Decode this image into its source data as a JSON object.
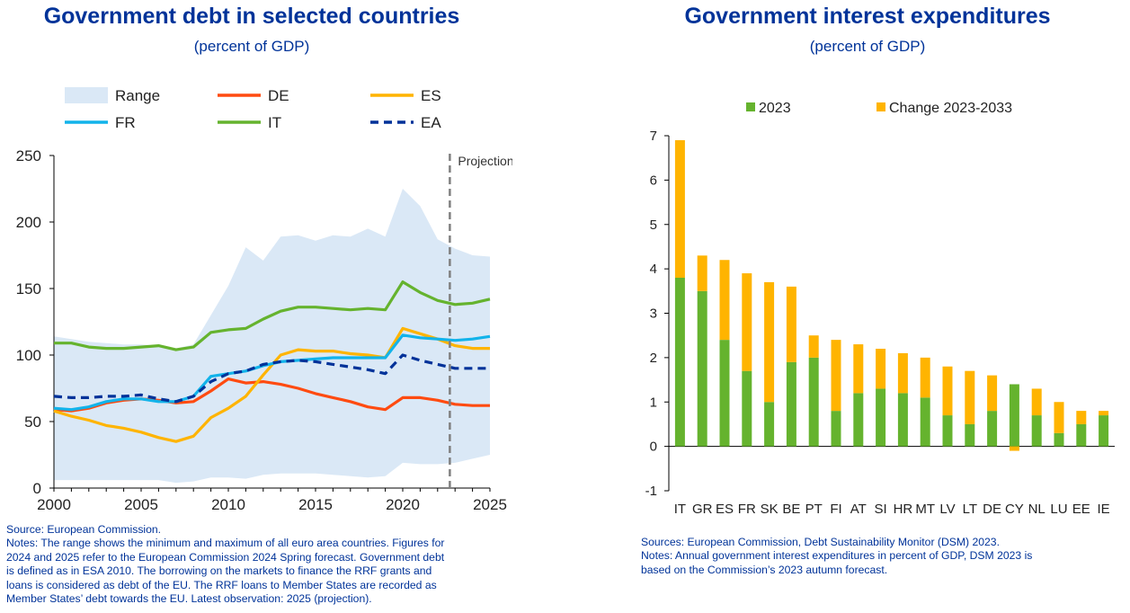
{
  "left_panel": {
    "title": "Government debt in selected countries",
    "subtitle": "(percent of GDP)",
    "projection_label": "Projection",
    "notes": [
      "Source: European Commission.",
      "Notes: The range shows the minimum and maximum of all euro area countries. Figures for",
      "2024 and 2025 refer to the European Commission 2024 Spring forecast. Government debt",
      "is defined as in ESA 2010. The borrowing on the markets to finance the RRF grants and",
      "loans is considered as debt of the EU. The RRF loans to Member States are recorded as",
      "Member States’ debt towards the EU. Latest observation: 2025 (projection)."
    ]
  },
  "right_panel": {
    "title": "Government interest expenditures",
    "subtitle": "(percent of GDP)",
    "notes": [
      "Sources: European Commission, Debt Sustainability Monitor (DSM) 2023.",
      "Notes: Annual government interest expenditures in percent of GDP, DSM 2023 is",
      "based on the Commission’s 2023 autumn forecast."
    ]
  },
  "chart_data": [
    {
      "type": "line",
      "title": "Government debt in selected countries",
      "subtitle": "(percent of GDP)",
      "xlim": [
        2000,
        2025
      ],
      "ylim": [
        0,
        250
      ],
      "x_ticks": [
        2000,
        2005,
        2010,
        2015,
        2020,
        2025
      ],
      "y_ticks": [
        0,
        50,
        100,
        150,
        200,
        250
      ],
      "grid": false,
      "projection_start": 2022.7,
      "x": [
        2000,
        2001,
        2002,
        2003,
        2004,
        2005,
        2006,
        2007,
        2008,
        2009,
        2010,
        2011,
        2012,
        2013,
        2014,
        2015,
        2016,
        2017,
        2018,
        2019,
        2020,
        2021,
        2022,
        2023,
        2024,
        2025
      ],
      "range": {
        "name": "Range",
        "color": "#dae8f6",
        "min": [
          6,
          6,
          6,
          6,
          6,
          6,
          6,
          4,
          5,
          8,
          8,
          7,
          10,
          11,
          11,
          11,
          10,
          9,
          8,
          9,
          19,
          18,
          18,
          19,
          22,
          25
        ],
        "max": [
          114,
          112,
          110,
          109,
          108,
          108,
          107,
          105,
          108,
          130,
          152,
          181,
          171,
          189,
          190,
          186,
          190,
          189,
          195,
          189,
          225,
          212,
          187,
          180,
          175,
          174
        ]
      },
      "series": [
        {
          "name": "DE",
          "color": "#ff4b11",
          "dashed": false,
          "values": [
            59,
            58,
            60,
            64,
            66,
            67,
            66,
            64,
            65,
            73,
            82,
            79,
            80,
            78,
            75,
            71,
            68,
            65,
            61,
            59,
            68,
            68,
            66,
            63,
            62,
            62
          ]
        },
        {
          "name": "ES",
          "color": "#ffb400",
          "dashed": false,
          "values": [
            58,
            54,
            51,
            47,
            45,
            42,
            38,
            35,
            39,
            53,
            60,
            69,
            85,
            100,
            104,
            103,
            103,
            101,
            100,
            98,
            120,
            116,
            112,
            107,
            105,
            105
          ]
        },
        {
          "name": "FR",
          "color": "#12b3ea",
          "dashed": false,
          "values": [
            60,
            59,
            61,
            65,
            67,
            67,
            65,
            65,
            69,
            84,
            86,
            88,
            92,
            95,
            96,
            97,
            98,
            98,
            98,
            98,
            115,
            113,
            112,
            111,
            112,
            114
          ]
        },
        {
          "name": "IT",
          "color": "#65b32e",
          "dashed": false,
          "values": [
            109,
            109,
            106,
            105,
            105,
            106,
            107,
            104,
            106,
            117,
            119,
            120,
            127,
            133,
            136,
            136,
            135,
            134,
            135,
            134,
            155,
            147,
            141,
            138,
            139,
            142
          ]
        },
        {
          "name": "EA",
          "color": "#003299",
          "dashed": true,
          "values": [
            69,
            68,
            68,
            69,
            69,
            70,
            67,
            65,
            69,
            80,
            86,
            88,
            93,
            95,
            96,
            95,
            93,
            91,
            89,
            86,
            100,
            96,
            93,
            90,
            90,
            90
          ]
        }
      ],
      "legend_order": [
        "Range",
        "DE",
        "ES",
        "FR",
        "IT",
        "EA"
      ],
      "legend_position": "top"
    },
    {
      "type": "bar",
      "stacked": true,
      "title": "Government interest expenditures",
      "subtitle": "(percent of GDP)",
      "ylim": [
        -1,
        7
      ],
      "y_ticks": [
        -1,
        0,
        1,
        2,
        3,
        4,
        5,
        6,
        7
      ],
      "grid": false,
      "categories": [
        "IT",
        "GR",
        "ES",
        "FR",
        "SK",
        "BE",
        "PT",
        "FI",
        "AT",
        "SI",
        "HR",
        "MT",
        "LV",
        "LT",
        "DE",
        "CY",
        "NL",
        "LU",
        "EE",
        "IE"
      ],
      "series": [
        {
          "name": "2023",
          "color": "#65b32e",
          "values": [
            3.8,
            3.5,
            2.4,
            1.7,
            1.0,
            1.9,
            2.0,
            0.8,
            1.2,
            1.3,
            1.2,
            1.1,
            0.7,
            0.5,
            0.8,
            1.4,
            0.7,
            0.3,
            0.5,
            0.7
          ]
        },
        {
          "name": "Change 2023-2033",
          "color": "#ffb400",
          "values": [
            3.1,
            0.8,
            1.8,
            2.2,
            2.7,
            1.7,
            0.5,
            1.6,
            1.1,
            0.9,
            0.9,
            0.9,
            1.1,
            1.2,
            0.8,
            -0.1,
            0.6,
            0.7,
            0.3,
            0.1
          ]
        }
      ],
      "legend_position": "top"
    }
  ]
}
